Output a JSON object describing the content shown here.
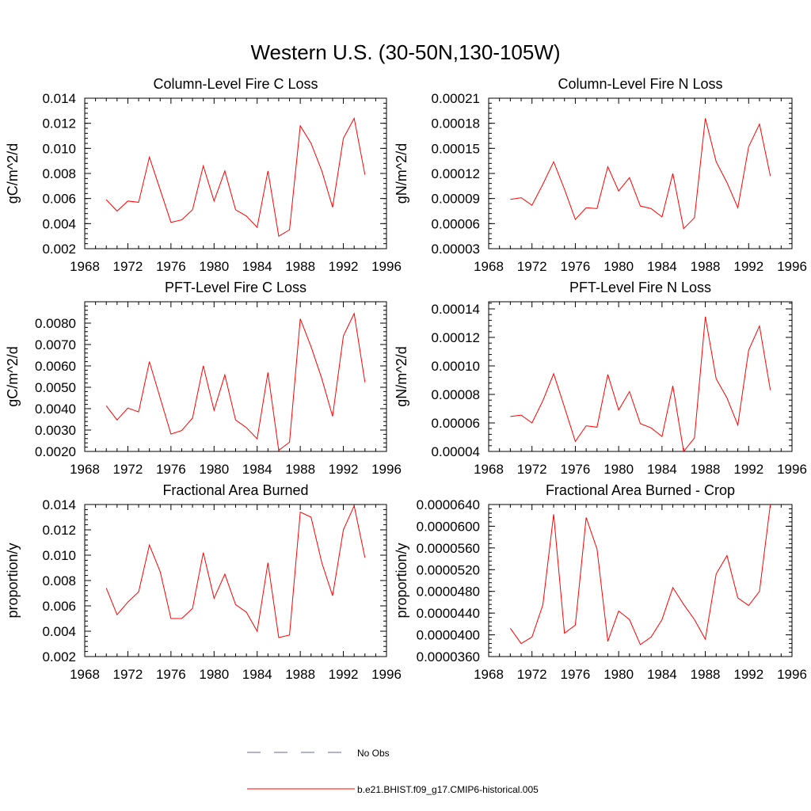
{
  "figure": {
    "title": "Western U.S. (30-50N,130-105W)"
  },
  "colors": {
    "model_line": "#ff0000",
    "obs_line": "#6666aa",
    "axis": "#000000"
  },
  "legend": {
    "placement": "bottom-center",
    "entries": [
      {
        "label": "No Obs",
        "style": "dashed",
        "color": "#6666aa"
      },
      {
        "label": "b.e21.BHIST.f09_g17.CMIP6-historical.005",
        "style": "solid",
        "color": "#ff0000"
      }
    ]
  },
  "chart_data": [
    {
      "type": "line",
      "title": "Column-Level Fire C Loss",
      "ylabel": "gC/m^2/d",
      "xlim": [
        1968,
        1996
      ],
      "ylim": [
        0.002,
        0.014
      ],
      "xticks": [
        1968,
        1972,
        1976,
        1980,
        1984,
        1988,
        1992,
        1996
      ],
      "yticks": [
        0.002,
        0.004,
        0.006,
        0.008,
        0.01,
        0.012,
        0.014
      ],
      "ytick_labels": [
        "0.002",
        "0.004",
        "0.006",
        "0.008",
        "0.010",
        "0.012",
        "0.014"
      ],
      "x": [
        1970,
        1971,
        1972,
        1973,
        1974,
        1975,
        1976,
        1977,
        1978,
        1979,
        1980,
        1981,
        1982,
        1983,
        1984,
        1985,
        1986,
        1987,
        1988,
        1989,
        1990,
        1991,
        1992,
        1993,
        1994
      ],
      "series": [
        {
          "name": "b.e21.BHIST.f09_g17.CMIP6-historical.005",
          "values": [
            0.0059,
            0.005,
            0.0058,
            0.0057,
            0.0093,
            0.0067,
            0.0041,
            0.0043,
            0.0051,
            0.0086,
            0.0058,
            0.0082,
            0.0051,
            0.0046,
            0.0037,
            0.0082,
            0.003,
            0.0035,
            0.0118,
            0.0104,
            0.0082,
            0.0053,
            0.0108,
            0.0124,
            0.0079
          ]
        }
      ]
    },
    {
      "type": "line",
      "title": "Column-Level Fire N Loss",
      "ylabel": "gN/m^2/d",
      "xlim": [
        1968,
        1996
      ],
      "ylim": [
        3e-05,
        0.00021
      ],
      "xticks": [
        1968,
        1972,
        1976,
        1980,
        1984,
        1988,
        1992,
        1996
      ],
      "yticks": [
        3e-05,
        6e-05,
        9e-05,
        0.00012,
        0.00015,
        0.00018,
        0.00021
      ],
      "ytick_labels": [
        "0.00003",
        "0.00006",
        "0.00009",
        "0.00012",
        "0.00015",
        "0.00018",
        "0.00021"
      ],
      "x": [
        1970,
        1971,
        1972,
        1973,
        1974,
        1975,
        1976,
        1977,
        1978,
        1979,
        1980,
        1981,
        1982,
        1983,
        1984,
        1985,
        1986,
        1987,
        1988,
        1989,
        1990,
        1991,
        1992,
        1993,
        1994
      ],
      "series": [
        {
          "name": "b.e21.BHIST.f09_g17.CMIP6-historical.005",
          "values": [
            8.9e-05,
            9.1e-05,
            8.2e-05,
            0.000107,
            0.000134,
            0.000101,
            6.5e-05,
            7.9e-05,
            7.8e-05,
            0.000128,
            9.9e-05,
            0.000115,
            8.1e-05,
            7.8e-05,
            6.8e-05,
            0.00012,
            5.4e-05,
            6.7e-05,
            0.000186,
            0.000134,
            0.000109,
            7.9e-05,
            0.000152,
            0.000179,
            0.000117
          ]
        }
      ]
    },
    {
      "type": "line",
      "title": "PFT-Level Fire C Loss",
      "ylabel": "gC/m^2/d",
      "xlim": [
        1968,
        1996
      ],
      "ylim": [
        0.002,
        0.009
      ],
      "xticks": [
        1968,
        1972,
        1976,
        1980,
        1984,
        1988,
        1992,
        1996
      ],
      "yticks": [
        0.002,
        0.003,
        0.004,
        0.005,
        0.006,
        0.007,
        0.008
      ],
      "ytick_labels": [
        "0.0020",
        "0.0030",
        "0.0040",
        "0.0050",
        "0.0060",
        "0.0070",
        "0.0080"
      ],
      "x": [
        1970,
        1971,
        1972,
        1973,
        1974,
        1975,
        1976,
        1977,
        1978,
        1979,
        1980,
        1981,
        1982,
        1983,
        1984,
        1985,
        1986,
        1987,
        1988,
        1989,
        1990,
        1991,
        1992,
        1993,
        1994
      ],
      "series": [
        {
          "name": "b.e21.BHIST.f09_g17.CMIP6-historical.005",
          "values": [
            0.00413,
            0.00347,
            0.00403,
            0.00385,
            0.0062,
            0.0045,
            0.00281,
            0.00298,
            0.00356,
            0.006,
            0.00392,
            0.00558,
            0.00347,
            0.00311,
            0.00259,
            0.00569,
            0.00205,
            0.00243,
            0.0082,
            0.0069,
            0.0054,
            0.00364,
            0.0074,
            0.00845,
            0.00524
          ]
        }
      ]
    },
    {
      "type": "line",
      "title": "PFT-Level Fire N Loss",
      "ylabel": "gN/m^2/d",
      "xlim": [
        1968,
        1996
      ],
      "ylim": [
        4e-05,
        0.000145
      ],
      "xticks": [
        1968,
        1972,
        1976,
        1980,
        1984,
        1988,
        1992,
        1996
      ],
      "yticks": [
        4e-05,
        6e-05,
        8e-05,
        0.0001,
        0.00012,
        0.00014
      ],
      "ytick_labels": [
        "0.00004",
        "0.00006",
        "0.00008",
        "0.00010",
        "0.00012",
        "0.00014"
      ],
      "x": [
        1970,
        1971,
        1972,
        1973,
        1974,
        1975,
        1976,
        1977,
        1978,
        1979,
        1980,
        1981,
        1982,
        1983,
        1984,
        1985,
        1986,
        1987,
        1988,
        1989,
        1990,
        1991,
        1992,
        1993,
        1994
      ],
      "series": [
        {
          "name": "b.e21.BHIST.f09_g17.CMIP6-historical.005",
          "values": [
            6.45e-05,
            6.55e-05,
            6e-05,
            7.55e-05,
            9.45e-05,
            7.1e-05,
            4.7e-05,
            5.8e-05,
            5.7e-05,
            9.4e-05,
            6.9e-05,
            8.2e-05,
            5.95e-05,
            5.65e-05,
            5.05e-05,
            8.6e-05,
            4e-05,
            4.95e-05,
            0.0001345,
            9.1e-05,
            7.75e-05,
            5.85e-05,
            0.000111,
            0.000128,
            8.3e-05
          ]
        }
      ]
    },
    {
      "type": "line",
      "title": "Fractional Area Burned",
      "ylabel": "proportion/y",
      "xlim": [
        1968,
        1996
      ],
      "ylim": [
        0.002,
        0.014
      ],
      "xticks": [
        1968,
        1972,
        1976,
        1980,
        1984,
        1988,
        1992,
        1996
      ],
      "yticks": [
        0.002,
        0.004,
        0.006,
        0.008,
        0.01,
        0.012,
        0.014
      ],
      "ytick_labels": [
        "0.002",
        "0.004",
        "0.006",
        "0.008",
        "0.010",
        "0.012",
        "0.014"
      ],
      "x": [
        1970,
        1971,
        1972,
        1973,
        1974,
        1975,
        1976,
        1977,
        1978,
        1979,
        1980,
        1981,
        1982,
        1983,
        1984,
        1985,
        1986,
        1987,
        1988,
        1989,
        1990,
        1991,
        1992,
        1993,
        1994
      ],
      "series": [
        {
          "name": "b.e21.BHIST.f09_g17.CMIP6-historical.005",
          "values": [
            0.0074,
            0.0053,
            0.0063,
            0.0071,
            0.0108,
            0.0087,
            0.005,
            0.005,
            0.0058,
            0.0102,
            0.0066,
            0.0085,
            0.0061,
            0.0055,
            0.004,
            0.0094,
            0.0035,
            0.0037,
            0.0134,
            0.013,
            0.0094,
            0.0068,
            0.012,
            0.0139,
            0.0098
          ]
        }
      ]
    },
    {
      "type": "line",
      "title": "Fractional Area Burned - Crop",
      "ylabel": "proportion/y",
      "xlim": [
        1968,
        1996
      ],
      "ylim": [
        3.6e-05,
        6.4e-05
      ],
      "xticks": [
        1968,
        1972,
        1976,
        1980,
        1984,
        1988,
        1992,
        1996
      ],
      "yticks": [
        3.6e-05,
        4e-05,
        4.4e-05,
        4.8e-05,
        5.2e-05,
        5.6e-05,
        6e-05,
        6.4e-05
      ],
      "ytick_labels": [
        "0.0000360",
        "0.0000400",
        "0.0000440",
        "0.0000480",
        "0.0000520",
        "0.0000560",
        "0.0000600",
        "0.0000640"
      ],
      "x": [
        1970,
        1971,
        1972,
        1973,
        1974,
        1975,
        1976,
        1977,
        1978,
        1979,
        1980,
        1981,
        1982,
        1983,
        1984,
        1985,
        1986,
        1987,
        1988,
        1989,
        1990,
        1991,
        1992,
        1993,
        1994
      ],
      "series": [
        {
          "name": "b.e21.BHIST.f09_g17.CMIP6-historical.005",
          "values": [
            4.12e-05,
            3.84e-05,
            3.96e-05,
            4.55e-05,
            6.22e-05,
            4.03e-05,
            4.18e-05,
            6.16e-05,
            5.58e-05,
            3.88e-05,
            4.44e-05,
            4.28e-05,
            3.82e-05,
            3.96e-05,
            4.28e-05,
            4.87e-05,
            4.56e-05,
            4.28e-05,
            3.92e-05,
            5.12e-05,
            5.46e-05,
            4.68e-05,
            4.54e-05,
            4.8e-05,
            6.4e-05
          ]
        }
      ]
    }
  ]
}
